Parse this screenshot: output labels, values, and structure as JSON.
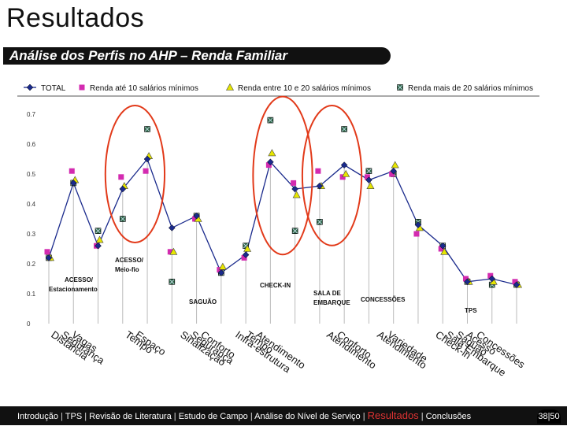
{
  "slide": {
    "title": "Resultados",
    "subtitle": "Análise dos Perfis no AHP – Renda Familiar",
    "page": "38|50"
  },
  "footer": {
    "nav": [
      "Introdução",
      "TPS",
      "Revisão de Literatura",
      "Estudo de Campo",
      "Análise do Nível de Serviço",
      "Resultados",
      "Conclusões"
    ],
    "active": "Resultados"
  },
  "colors": {
    "total": "#1a2a8c",
    "renda1": "#d32bb0",
    "renda2": "#e6e600",
    "renda3": "#2f6b4a",
    "highlight": "#e23a1a"
  },
  "chart_data": {
    "type": "line",
    "legend_position": "top",
    "ylim": [
      0,
      0.7
    ],
    "yticks": [
      "0",
      "0.1",
      "0.2",
      "0.3",
      "0.4",
      "0.5",
      "0.6",
      "0.7"
    ],
    "category_columns": [
      [
        "Distância",
        "Segurança",
        "Vagas"
      ],
      [
        "Tempo",
        "Espaço"
      ],
      [
        "Sinalização",
        "Segurança",
        "Conforto"
      ],
      [
        "Infra-estrutura",
        "Tempo",
        "Atendimento"
      ],
      [
        "Atendimento",
        "Conforto"
      ],
      [
        "Atendimento",
        "Variedade"
      ],
      [
        "Check-in",
        "Sala Embarque",
        "Saguão",
        "Acesso",
        "Concessões"
      ]
    ],
    "series": [
      {
        "name": "TOTAL",
        "marker": "diamond",
        "line": true,
        "values": [
          0.22,
          0.47,
          0.26,
          0.45,
          0.55,
          0.32,
          0.36,
          0.17,
          0.23,
          0.54,
          0.45,
          0.46,
          0.53,
          0.48,
          0.51,
          0.33,
          0.26,
          0.14,
          0.15,
          0.13
        ]
      },
      {
        "name": "Renda até 10 salários mínimos",
        "marker": "square",
        "line": false,
        "values": [
          0.24,
          0.51,
          0.26,
          0.49,
          0.51,
          0.24,
          0.35,
          0.18,
          0.22,
          0.53,
          0.47,
          0.51,
          0.49,
          0.49,
          0.5,
          0.3,
          0.25,
          0.15,
          0.16,
          0.14
        ]
      },
      {
        "name": "Renda entre 10 e 20 salários mínimos",
        "marker": "triangle",
        "line": false,
        "values": [
          0.22,
          0.48,
          0.28,
          0.46,
          0.56,
          0.24,
          0.35,
          0.19,
          0.25,
          0.57,
          0.43,
          0.46,
          0.5,
          0.46,
          0.53,
          0.32,
          0.24,
          0.14,
          0.14,
          0.13
        ]
      },
      {
        "name": "Renda mais de 20 salários mínimos",
        "marker": "xsquare",
        "line": false,
        "values": [
          0.22,
          0.47,
          0.31,
          0.35,
          0.65,
          0.14,
          0.36,
          0.17,
          0.26,
          0.68,
          0.31,
          0.34,
          0.65,
          0.51,
          0.5,
          0.34,
          0.26,
          0.14,
          0.13,
          0.13
        ]
      }
    ],
    "annotations": [
      {
        "text": "ACESSO/",
        "text2": "Estacionamento",
        "index": 0
      },
      {
        "text": "ACESSO/",
        "text2": "Meio-fio",
        "index": 3
      },
      {
        "text": "SAGUÃO",
        "index": 5
      },
      {
        "text": "CHECK-IN",
        "index": 9
      },
      {
        "text": "SALA DE",
        "text2": "EMBARQUE",
        "index": 11
      },
      {
        "text": "CONCESSÕES",
        "index": 13
      },
      {
        "text": "TPS",
        "index": 17
      }
    ],
    "highlight_circles": [
      {
        "from": 3,
        "to": 4
      },
      {
        "from": 9,
        "to": 10
      },
      {
        "from": 11,
        "to": 12
      }
    ]
  }
}
